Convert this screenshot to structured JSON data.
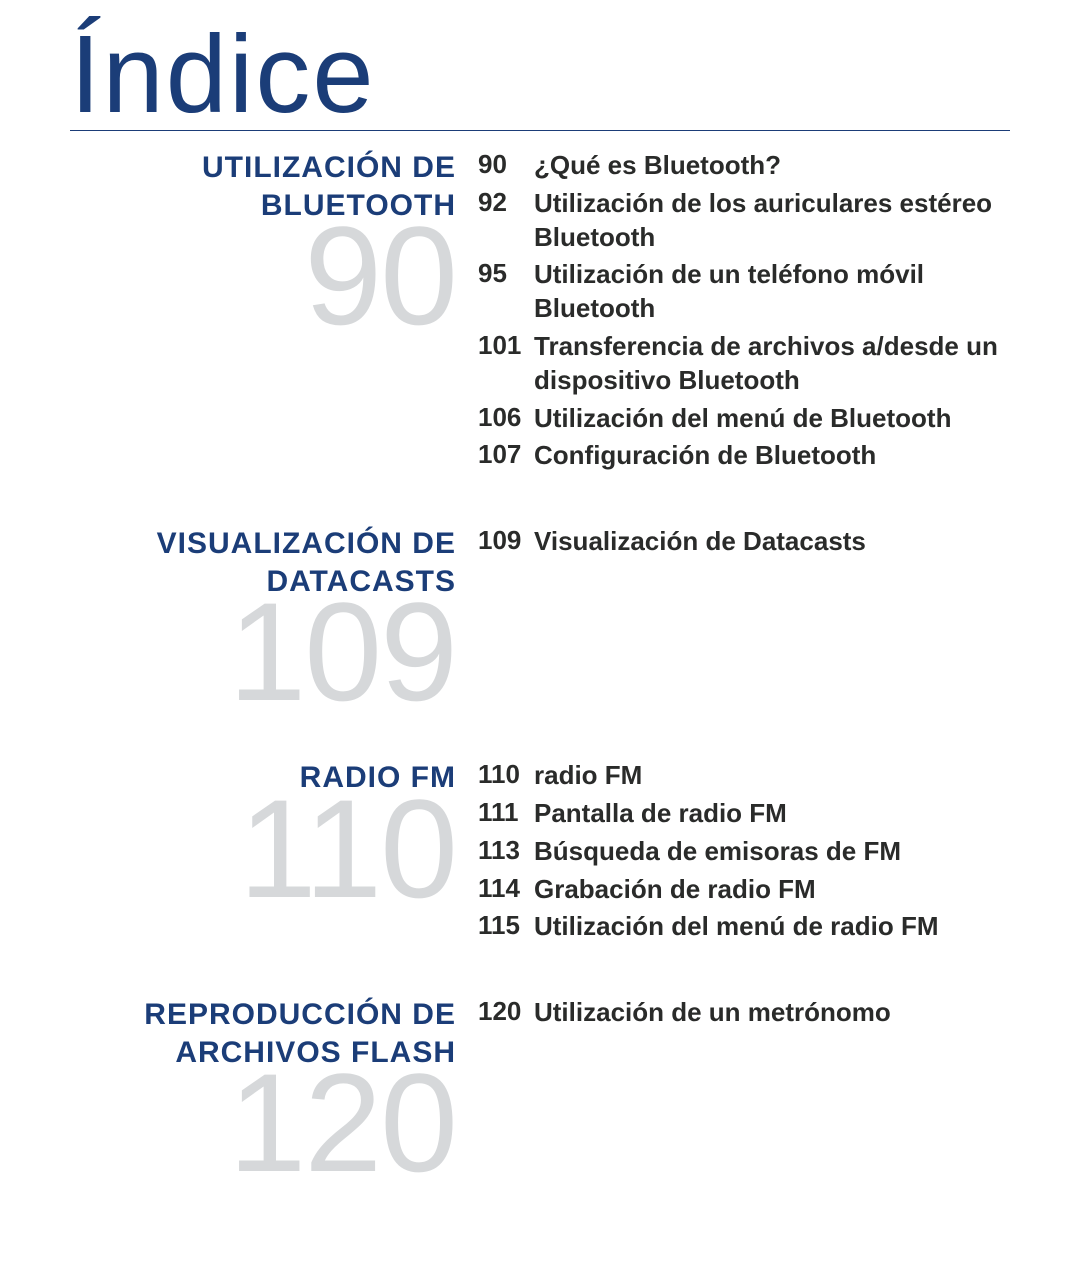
{
  "title": "Índice",
  "colors": {
    "heading": "#1b3d78",
    "bigNumber": "#d6d8da",
    "text": "#2a2b2a",
    "background": "#ffffff",
    "rule": "#1b3d78"
  },
  "typography": {
    "title_fontsize": 110,
    "title_weight": 200,
    "heading_fontsize": 30,
    "heading_weight": 700,
    "bigNumber_fontsize": 140,
    "bigNumber_weight": 100,
    "entry_fontsize": 26,
    "entry_weight": 700
  },
  "sections": [
    {
      "heading": "UTILIZACIÓN DE BLUETOOTH",
      "pageNumber": "90",
      "entries": [
        {
          "page": "90",
          "label": "¿Qué es Bluetooth?"
        },
        {
          "page": "92",
          "label": "Utilización de los auriculares estéreo Bluetooth"
        },
        {
          "page": "95",
          "label": "Utilización de un teléfono móvil Bluetooth"
        },
        {
          "page": "101",
          "label": "Transferencia de archivos a/desde un dispositivo Bluetooth"
        },
        {
          "page": "106",
          "label": "Utilización del menú de Bluetooth"
        },
        {
          "page": "107",
          "label": "Configuración de Bluetooth"
        }
      ]
    },
    {
      "heading": "VISUALIZACIÓN DE DATACASTS",
      "pageNumber": "109",
      "entries": [
        {
          "page": "109",
          "label": "Visualización de Datacasts"
        }
      ]
    },
    {
      "heading": "RADIO FM",
      "pageNumber": "110",
      "entries": [
        {
          "page": "110",
          "label": "radio FM"
        },
        {
          "page": "111",
          "label": "Pantalla de radio FM"
        },
        {
          "page": "113",
          "label": "Búsqueda de emisoras de FM"
        },
        {
          "page": "114",
          "label": "Grabación de radio FM"
        },
        {
          "page": "115",
          "label": "Utilización del menú de radio FM"
        }
      ]
    },
    {
      "heading": "REPRODUCCIÓN DE ARCHIVOS FLASH",
      "pageNumber": "120",
      "entries": [
        {
          "page": "120",
          "label": "Utilización de un metrónomo"
        }
      ]
    }
  ]
}
